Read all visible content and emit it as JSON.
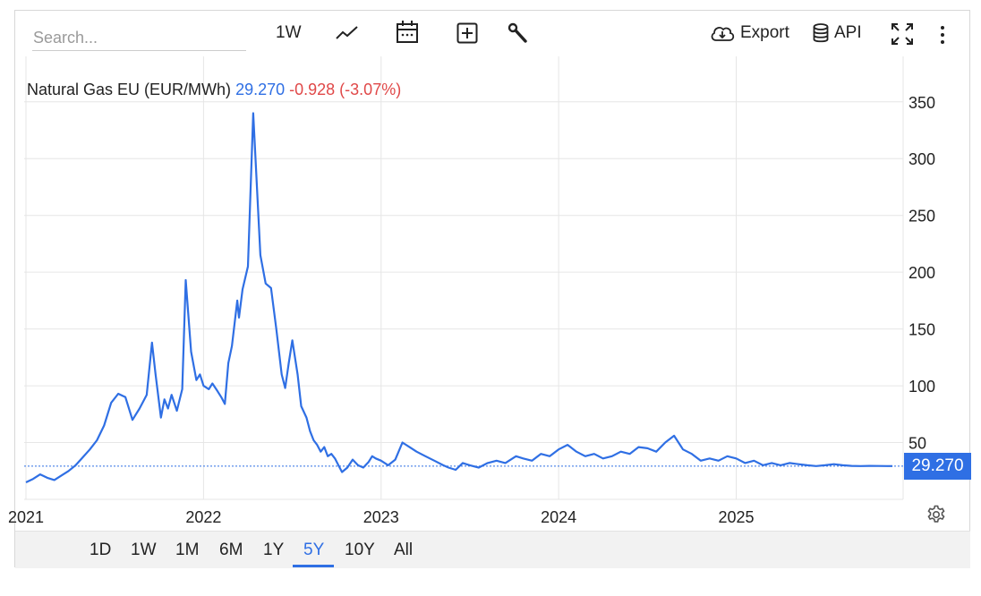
{
  "toolbar": {
    "search_placeholder": "Search...",
    "interval": "1W",
    "export": "Export",
    "api": "API"
  },
  "legend": {
    "name": "Natural Gas EU (EUR/MWh)",
    "value": "29.270",
    "change": "-0.928 (-3.07%)"
  },
  "last_value_badge": "29.270",
  "ranges": [
    "1D",
    "1W",
    "1M",
    "6M",
    "1Y",
    "5Y",
    "10Y",
    "All"
  ],
  "active_range": "5Y",
  "colors": {
    "line": "#2f6fe4",
    "negative": "#e04848",
    "badge": "#2f6fe4"
  },
  "chart_data": {
    "type": "line",
    "title": "Natural Gas EU (EUR/MWh)",
    "xlabel": "",
    "ylabel": "",
    "x_ticks": [
      "2021",
      "2022",
      "2023",
      "2024",
      "2025"
    ],
    "y_ticks": [
      50,
      100,
      150,
      200,
      250,
      300,
      350
    ],
    "xlim": [
      2020.99,
      2025.94
    ],
    "ylim": [
      0,
      390
    ],
    "grid": true,
    "last_value": 29.27,
    "series": [
      {
        "name": "Natural Gas EU",
        "x": [
          2021.0,
          2021.04,
          2021.08,
          2021.12,
          2021.16,
          2021.2,
          2021.24,
          2021.28,
          2021.32,
          2021.36,
          2021.4,
          2021.44,
          2021.48,
          2021.52,
          2021.56,
          2021.6,
          2021.64,
          2021.68,
          2021.71,
          2021.73,
          2021.76,
          2021.78,
          2021.8,
          2021.82,
          2021.85,
          2021.88,
          2021.9,
          2021.93,
          2021.96,
          2021.98,
          2022.0,
          2022.03,
          2022.05,
          2022.08,
          2022.1,
          2022.12,
          2022.14,
          2022.16,
          2022.19,
          2022.2,
          2022.22,
          2022.25,
          2022.28,
          2022.32,
          2022.35,
          2022.38,
          2022.41,
          2022.44,
          2022.46,
          2022.48,
          2022.5,
          2022.53,
          2022.55,
          2022.58,
          2022.6,
          2022.62,
          2022.64,
          2022.66,
          2022.68,
          2022.7,
          2022.72,
          2022.74,
          2022.76,
          2022.78,
          2022.81,
          2022.84,
          2022.87,
          2022.9,
          2022.93,
          2022.95,
          2022.97,
          2023.0,
          2023.04,
          2023.08,
          2023.12,
          2023.16,
          2023.2,
          2023.25,
          2023.3,
          2023.35,
          2023.38,
          2023.42,
          2023.46,
          2023.5,
          2023.55,
          2023.6,
          2023.65,
          2023.7,
          2023.74,
          2023.76,
          2023.8,
          2023.85,
          2023.9,
          2023.95,
          2024.0,
          2024.05,
          2024.1,
          2024.15,
          2024.2,
          2024.25,
          2024.3,
          2024.35,
          2024.4,
          2024.45,
          2024.5,
          2024.55,
          2024.6,
          2024.65,
          2024.7,
          2024.75,
          2024.8,
          2024.85,
          2024.9,
          2024.95,
          2025.0,
          2025.05,
          2025.1,
          2025.15,
          2025.2,
          2025.25,
          2025.3,
          2025.35,
          2025.4,
          2025.45,
          2025.5,
          2025.55,
          2025.6,
          2025.65,
          2025.7,
          2025.75,
          2025.8,
          2025.85,
          2025.88
        ],
        "values": [
          15,
          18,
          22,
          19,
          17,
          21,
          25,
          30,
          37,
          44,
          52,
          65,
          85,
          93,
          90,
          70,
          80,
          92,
          138,
          110,
          72,
          88,
          80,
          92,
          78,
          97,
          193,
          130,
          105,
          110,
          100,
          97,
          102,
          95,
          90,
          84,
          120,
          135,
          175,
          160,
          185,
          205,
          340,
          215,
          190,
          186,
          150,
          110,
          98,
          120,
          140,
          110,
          82,
          72,
          60,
          52,
          48,
          42,
          46,
          38,
          40,
          36,
          30,
          24,
          28,
          35,
          30,
          28,
          33,
          38,
          36,
          34,
          30,
          35,
          50,
          46,
          42,
          38,
          34,
          30,
          28,
          26,
          32,
          30,
          28,
          32,
          34,
          32,
          36,
          38,
          36,
          34,
          40,
          38,
          44,
          48,
          42,
          38,
          40,
          36,
          38,
          42,
          40,
          46,
          45,
          42,
          50,
          56,
          44,
          40,
          34,
          36,
          34,
          38,
          36,
          32,
          34,
          30,
          32,
          30,
          32,
          31,
          30,
          29.27,
          30,
          31,
          30,
          29.5,
          29.27,
          29.5,
          29.4,
          29.3,
          29.27
        ]
      }
    ]
  }
}
